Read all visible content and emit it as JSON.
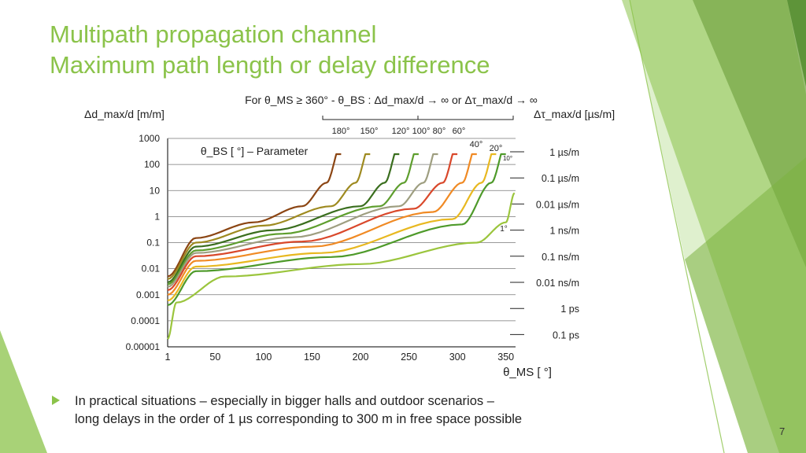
{
  "slide": {
    "title_line1": "Multipath propagation channel",
    "title_line2": "Maximum path length or delay difference",
    "bullet": {
      "line1": "In practical situations – especially in bigger halls and outdoor scenarios –",
      "line2": "long delays in the order of 1 µs corresponding to 300 m in free space possible"
    },
    "page_number": "7",
    "accent_color": "#8bc34a"
  },
  "chart_data": {
    "type": "line",
    "condition_text": "For θ_MS ≥ 360° - θ_BS :  Δd_max/d → ∞  or  Δτ_max/d → ∞",
    "parameter_label": "θ_BS [ °] – Parameter",
    "ylabel_left": "Δd_max/d [m/m]",
    "ylabel_right": "Δτ_max/d [µs/m]",
    "xlabel": "θ_MS [ °]",
    "x_ticks": [
      "1",
      "50",
      "100",
      "150",
      "200",
      "250",
      "300",
      "350"
    ],
    "xlim": [
      1,
      360
    ],
    "y_scale": "log",
    "ylim": [
      1e-05,
      1000
    ],
    "y_ticks": [
      "1000",
      "100",
      "10",
      "1",
      "0.1",
      "0.01",
      "0.001",
      "0.0001",
      "0.00001"
    ],
    "right_ticks": [
      "1 µs/m",
      "0.1 µs/m",
      "0.01 µs/m",
      "1 ns/m",
      "0.1 ns/m",
      "0.01 ns/m",
      "1 ps",
      "0.1 ps"
    ],
    "grid": "horizontal",
    "top_series_labels": [
      "180°",
      "150°",
      "120°",
      "100°",
      "80°",
      "60°"
    ],
    "side_series_labels": [
      "40°",
      "20°",
      "10°",
      "1°"
    ],
    "series": [
      {
        "name": "180°",
        "color": "#8b4513",
        "asymptote": 180,
        "values": [
          [
            1,
            0.005
          ],
          [
            30,
            0.15
          ],
          [
            90,
            0.6
          ],
          [
            140,
            2.5
          ],
          [
            165,
            20
          ],
          [
            180,
            600
          ]
        ]
      },
      {
        "name": "150°",
        "color": "#9e8a20",
        "asymptote": 210,
        "values": [
          [
            1,
            0.004
          ],
          [
            30,
            0.1
          ],
          [
            100,
            0.45
          ],
          [
            170,
            2.5
          ],
          [
            195,
            20
          ],
          [
            210,
            600
          ]
        ]
      },
      {
        "name": "120°",
        "color": "#3a6e1e",
        "asymptote": 240,
        "values": [
          [
            1,
            0.003
          ],
          [
            30,
            0.07
          ],
          [
            110,
            0.3
          ],
          [
            200,
            2.5
          ],
          [
            225,
            20
          ],
          [
            240,
            600
          ]
        ]
      },
      {
        "name": "100°",
        "color": "#5e9e2e",
        "asymptote": 260,
        "values": [
          [
            1,
            0.0025
          ],
          [
            30,
            0.05
          ],
          [
            120,
            0.22
          ],
          [
            220,
            2.5
          ],
          [
            245,
            20
          ],
          [
            260,
            600
          ]
        ]
      },
      {
        "name": "80°",
        "color": "#9e9e80",
        "asymptote": 280,
        "values": [
          [
            1,
            0.002
          ],
          [
            30,
            0.04
          ],
          [
            130,
            0.16
          ],
          [
            240,
            2.5
          ],
          [
            265,
            20
          ],
          [
            280,
            600
          ]
        ]
      },
      {
        "name": "60°",
        "color": "#d9482b",
        "asymptote": 300,
        "values": [
          [
            1,
            0.0015
          ],
          [
            30,
            0.03
          ],
          [
            140,
            0.11
          ],
          [
            255,
            2
          ],
          [
            285,
            20
          ],
          [
            300,
            600
          ]
        ]
      },
      {
        "name": "40°",
        "color": "#f08a24",
        "asymptote": 320,
        "values": [
          [
            1,
            0.001
          ],
          [
            30,
            0.02
          ],
          [
            150,
            0.07
          ],
          [
            275,
            1.5
          ],
          [
            305,
            20
          ],
          [
            320,
            600
          ]
        ]
      },
      {
        "name": "20°",
        "color": "#e8b820",
        "asymptote": 340,
        "values": [
          [
            1,
            0.0006
          ],
          [
            30,
            0.012
          ],
          [
            160,
            0.04
          ],
          [
            295,
            0.8
          ],
          [
            325,
            20
          ],
          [
            340,
            600
          ]
        ]
      },
      {
        "name": "10°",
        "color": "#4e9a2a",
        "asymptote": 350,
        "values": [
          [
            1,
            0.0004
          ],
          [
            30,
            0.008
          ],
          [
            170,
            0.028
          ],
          [
            305,
            0.5
          ],
          [
            335,
            20
          ],
          [
            350,
            600
          ]
        ]
      },
      {
        "name": "1°",
        "color": "#9bc53d",
        "asymptote": 359,
        "values": [
          [
            1,
            2e-05
          ],
          [
            10,
            0.0005
          ],
          [
            60,
            0.005
          ],
          [
            200,
            0.015
          ],
          [
            320,
            0.1
          ],
          [
            350,
            0.6
          ],
          [
            359,
            8
          ]
        ]
      }
    ]
  }
}
